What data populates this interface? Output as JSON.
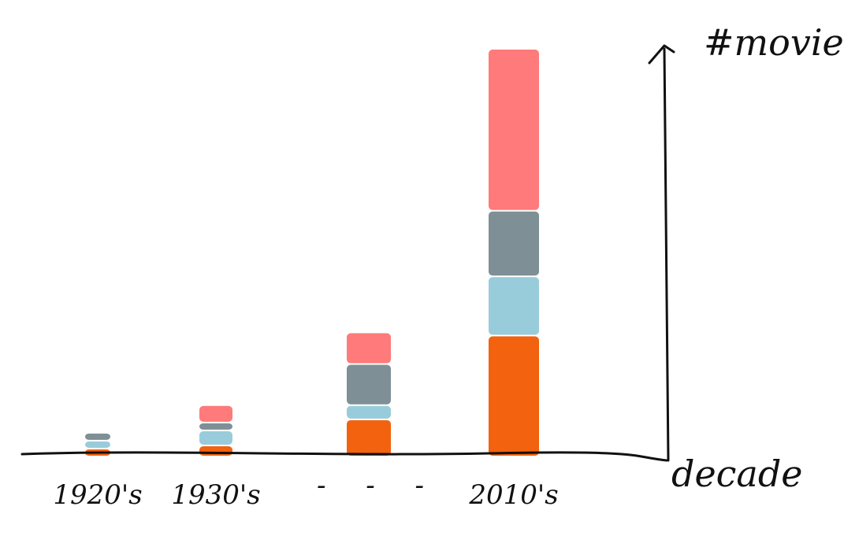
{
  "chart_data": {
    "type": "bar",
    "stacked": true,
    "categories": [
      "1920's",
      "1930's",
      "",
      "2010's"
    ],
    "gap_marks": "- - -",
    "xlabel": "decade",
    "ylabel": "#movies",
    "ylim": [
      0,
      510
    ],
    "grid": false,
    "legend": "none",
    "series": [
      {
        "color": "#f2620f",
        "values": [
          10,
          14,
          47,
          153
        ]
      },
      {
        "color": "#99ccdb",
        "values": [
          10,
          19,
          18,
          75
        ]
      },
      {
        "color": "#7f8f96",
        "values": [
          10,
          10,
          52,
          83
        ]
      },
      {
        "color": "#ff7a7a",
        "values": [
          0,
          22,
          40,
          205
        ]
      }
    ]
  }
}
